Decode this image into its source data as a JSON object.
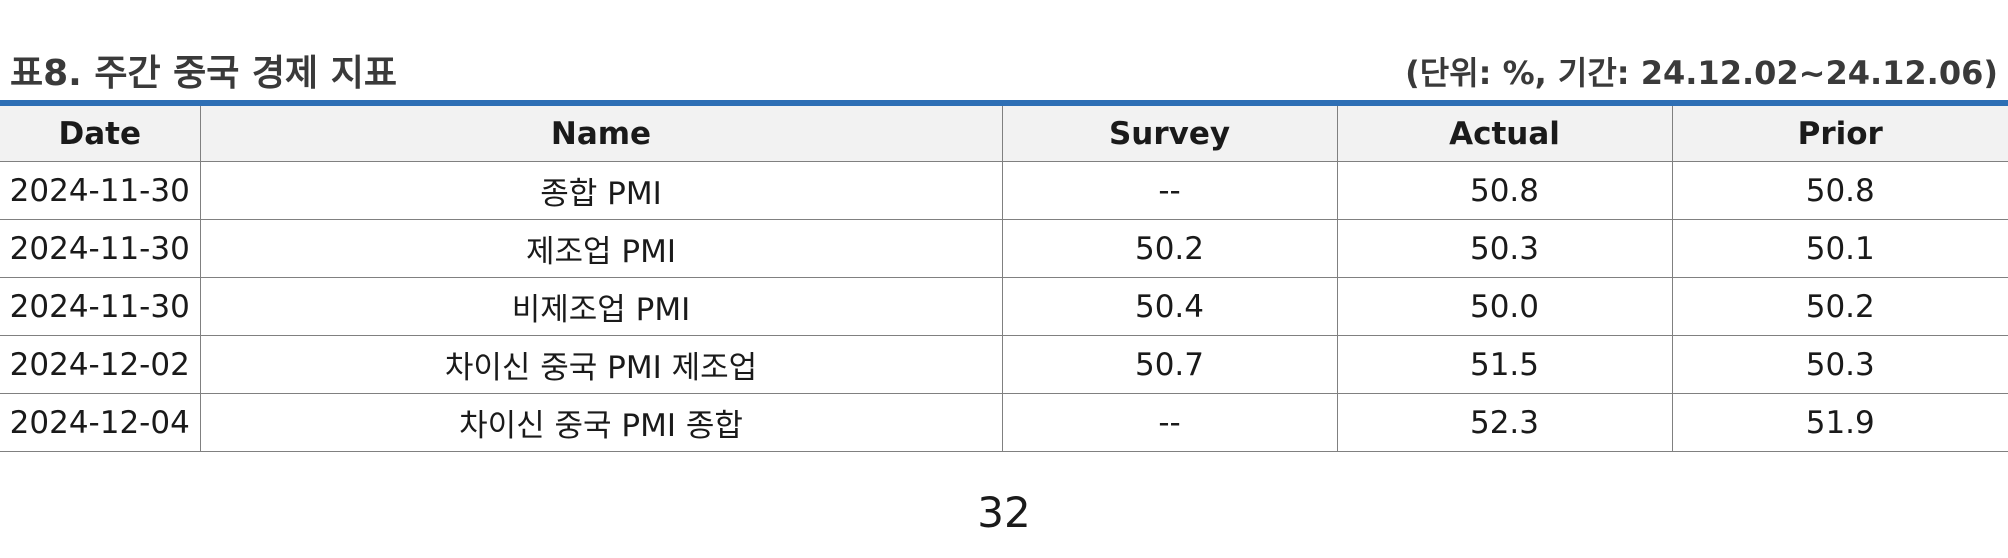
{
  "header": {
    "title": "표8. 주간 중국 경제 지표",
    "unit_note": "(단위: %, 기간: 24.12.02~24.12.06)"
  },
  "table": {
    "columns": [
      "Date",
      "Name",
      "Survey",
      "Actual",
      "Prior"
    ],
    "rows": [
      [
        "2024-11-30",
        "종합 PMI",
        "--",
        "50.8",
        "50.8"
      ],
      [
        "2024-11-30",
        "제조업 PMI",
        "50.2",
        "50.3",
        "50.1"
      ],
      [
        "2024-11-30",
        "비제조업 PMI",
        "50.4",
        "50.0",
        "50.2"
      ],
      [
        "2024-12-02",
        "차이신 중국 PMI 제조업",
        "50.7",
        "51.5",
        "50.3"
      ],
      [
        "2024-12-04",
        "차이신 중국 PMI 종합",
        "--",
        "52.3",
        "51.9"
      ]
    ]
  },
  "footer": {
    "page_number": "32"
  },
  "colors": {
    "accent_rule": "#2e6fb5",
    "header_bg": "#f2f2f2"
  }
}
